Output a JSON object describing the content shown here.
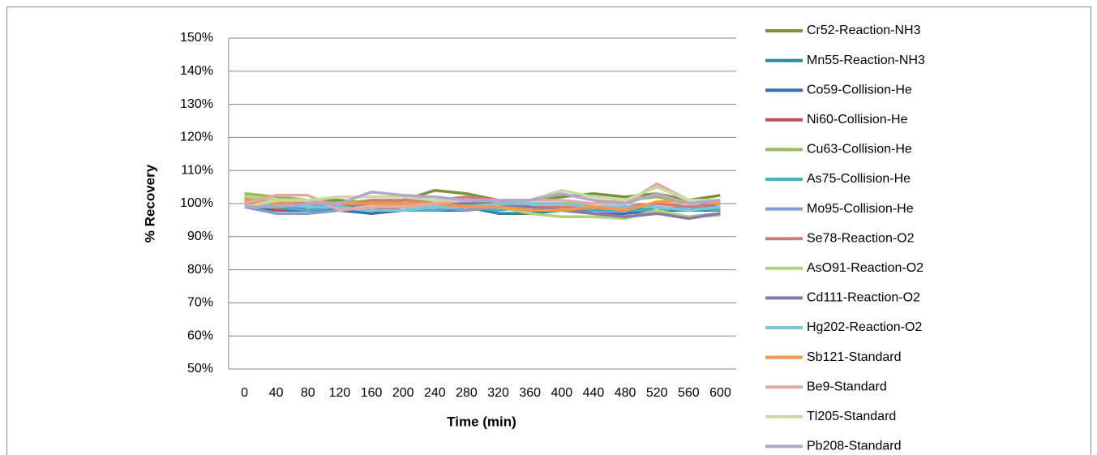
{
  "chart_data": {
    "type": "line",
    "x_label": "Time (min)",
    "y_label": "% Recovery",
    "categories": [
      "0",
      "40",
      "80",
      "120",
      "160",
      "200",
      "240",
      "280",
      "320",
      "360",
      "400",
      "440",
      "480",
      "520",
      "560",
      "600"
    ],
    "ylim": [
      50,
      150
    ],
    "yticks": [
      {
        "value": 50,
        "label": "50%"
      },
      {
        "value": 60,
        "label": "60%"
      },
      {
        "value": 70,
        "label": "70%"
      },
      {
        "value": 80,
        "label": "80%"
      },
      {
        "value": 90,
        "label": "90%"
      },
      {
        "value": 100,
        "label": "100%"
      },
      {
        "value": 110,
        "label": "110%"
      },
      {
        "value": 120,
        "label": "120%"
      },
      {
        "value": 130,
        "label": "130%"
      },
      {
        "value": 140,
        "label": "140%"
      },
      {
        "value": 150,
        "label": "150%"
      }
    ],
    "grid": true,
    "legend": "right",
    "series": [
      {
        "name": "Cr52-Reaction-NH3",
        "color": "#77933c",
        "values": [
          103,
          102,
          101,
          101,
          100,
          101,
          104,
          103,
          101,
          101,
          102,
          103,
          102,
          103,
          101,
          102.5
        ]
      },
      {
        "name": "Mn55-Reaction-NH3",
        "color": "#31859c",
        "values": [
          99,
          99,
          98,
          99,
          98,
          98,
          98,
          99,
          97,
          97,
          98,
          99,
          99,
          98,
          98,
          98
        ]
      },
      {
        "name": "Co59-Collision-He",
        "color": "#3a6eb5",
        "values": [
          99,
          98,
          98,
          98,
          97,
          98,
          98,
          98,
          99,
          98,
          98,
          97,
          97,
          98,
          99,
          98
        ]
      },
      {
        "name": "Ni60-Collision-He",
        "color": "#c0504d",
        "values": [
          102,
          98,
          99,
          99,
          98,
          99,
          99,
          99,
          100,
          99,
          98,
          98,
          99,
          100,
          99,
          99
        ]
      },
      {
        "name": "Cu63-Collision-He",
        "color": "#9bbb59",
        "values": [
          103,
          102,
          101,
          100,
          101,
          100,
          101,
          100,
          101,
          100,
          100,
          100,
          101,
          102,
          100,
          101
        ]
      },
      {
        "name": "As75-Collision-He",
        "color": "#4bacc6",
        "values": [
          100,
          99,
          98,
          99,
          98,
          98,
          98,
          99,
          98,
          99,
          99,
          98,
          98,
          98,
          99,
          98
        ]
      },
      {
        "name": "Mo95-Collision-He",
        "color": "#7f9fcf",
        "values": [
          99,
          97,
          97,
          98,
          99,
          99,
          99,
          98,
          99,
          99,
          98,
          97,
          96,
          97,
          96,
          97
        ]
      },
      {
        "name": "Se78-Reaction-O2",
        "color": "#d07c7a",
        "values": [
          101,
          101,
          100,
          99,
          101,
          101,
          101,
          102,
          101,
          99,
          99,
          99,
          99,
          100,
          99,
          100
        ]
      },
      {
        "name": "AsO91-Reaction-O2",
        "color": "#b3d07a",
        "values": [
          102,
          101,
          100,
          99,
          100,
          99,
          99,
          99,
          99,
          97,
          96,
          96,
          95.5,
          98,
          96,
          96.5
        ]
      },
      {
        "name": "Cd111-Reaction-O2",
        "color": "#8c78a8",
        "values": [
          100,
          100,
          100,
          99,
          100,
          100,
          100,
          100,
          100,
          99,
          98,
          97,
          96,
          97,
          95.5,
          97
        ]
      },
      {
        "name": "Hg202-Reaction-O2",
        "color": "#7ec4d8",
        "values": [
          99,
          100,
          99,
          99,
          98,
          98,
          99,
          99,
          100,
          100,
          100,
          99,
          99,
          99,
          98,
          99
        ]
      },
      {
        "name": "Sb121-Standard",
        "color": "#f79646",
        "values": [
          101,
          100,
          101,
          100,
          100,
          100,
          100,
          99,
          99,
          98,
          98,
          99,
          98,
          100.5,
          101,
          100
        ]
      },
      {
        "name": "Be9-Standard",
        "color": "#e6a7a6",
        "values": [
          100,
          102.5,
          102.5,
          98,
          99,
          99,
          100,
          101,
          101,
          101,
          101,
          100,
          100,
          106,
          101,
          101
        ]
      },
      {
        "name": "Tl205-Standard",
        "color": "#c7dba3",
        "values": [
          99,
          101,
          101,
          102,
          102,
          102,
          101,
          101,
          101,
          101,
          104,
          102,
          101,
          105,
          101,
          101
        ]
      },
      {
        "name": "Pb208-Standard",
        "color": "#b3a7c9",
        "values": [
          99,
          99,
          100,
          100,
          103.5,
          102.5,
          102,
          101,
          101,
          101,
          103,
          101,
          100,
          103,
          100,
          101
        ]
      }
    ]
  }
}
